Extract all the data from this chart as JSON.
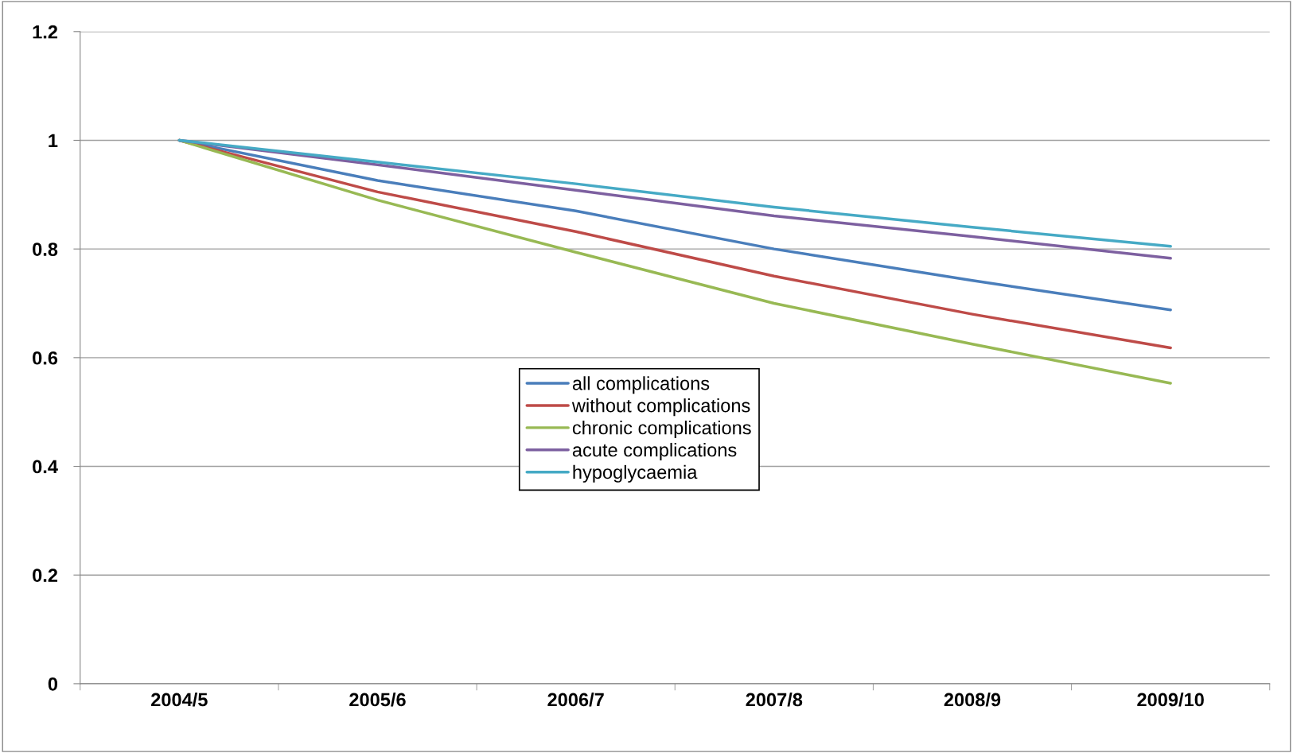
{
  "chart_data": {
    "type": "line",
    "categories": [
      "2004/5",
      "2005/6",
      "2006/7",
      "2007/8",
      "2008/9",
      "2009/10"
    ],
    "series": [
      {
        "name": "all complications",
        "color": "#4a7ebb",
        "values": [
          1,
          0.926,
          0.87,
          0.8,
          0.742,
          0.688
        ]
      },
      {
        "name": "without complications",
        "color": "#be4b48",
        "values": [
          1,
          0.905,
          0.832,
          0.75,
          0.68,
          0.618
        ]
      },
      {
        "name": "chronic complications",
        "color": "#98b954",
        "values": [
          1,
          0.89,
          0.794,
          0.7,
          0.625,
          0.553
        ]
      },
      {
        "name": "acute complications",
        "color": "#7d60a0",
        "values": [
          1,
          0.955,
          0.908,
          0.861,
          0.823,
          0.783
        ]
      },
      {
        "name": "hypoglycaemia",
        "color": "#46aac5",
        "values": [
          1,
          0.96,
          0.92,
          0.877,
          0.84,
          0.805
        ]
      }
    ],
    "ylim": [
      0,
      1.2
    ],
    "yticks": [
      0,
      0.2,
      0.4,
      0.6,
      0.8,
      1,
      1.2
    ],
    "grid": "y",
    "legend": "center",
    "marker": "none",
    "line_style": "solid"
  }
}
